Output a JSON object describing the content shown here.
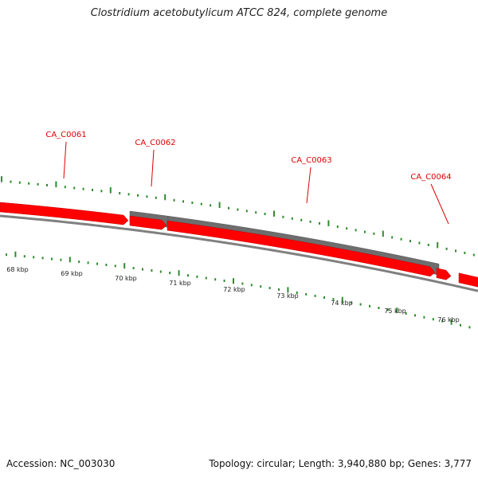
{
  "title": "Clostridium acetobutylicum ATCC 824, complete genome",
  "accession_text": "Accession: NC_003030",
  "summary_text": "Topology: circular; Length: 3,940,880 bp; Genes: 3,777",
  "colors": {
    "gene_forward": "#ff0000",
    "gene_overlay": "#6e6e6e",
    "backbone": "#808080",
    "tick": "#2e8b2e",
    "label": "#dd0000"
  },
  "genes": [
    {
      "name": "CA_C0061"
    },
    {
      "name": "CA_C0062"
    },
    {
      "name": "CA_C0063"
    },
    {
      "name": "CA_C0064"
    }
  ],
  "kbp_labels": [
    "68 kbp",
    "69 kbp",
    "70 kbp",
    "71 kbp",
    "72 kbp",
    "73 kbp",
    "74 kbp",
    "75 kbp",
    "76 kbp"
  ]
}
